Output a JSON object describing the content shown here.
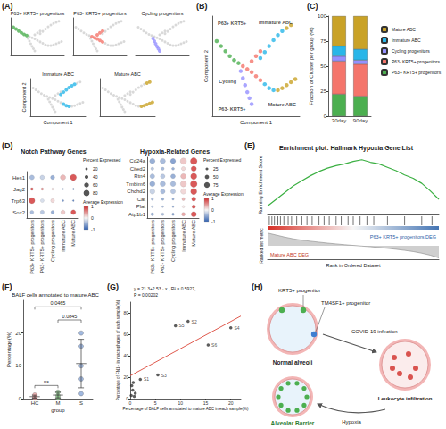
{
  "chart_data": [
    {
      "panel": "(A)",
      "type": "trajectory_panels",
      "xlabel": "Component 1",
      "ylabel": "Component 2",
      "tick_labels": false,
      "xlim": [
        -10,
        10
      ],
      "ylim": [
        -5,
        5
      ],
      "series": [
        {
          "name": "P63+ KRT5+ progenitors",
          "color": "#4caf50",
          "x": [
            -9,
            -8,
            -7,
            -6,
            -5,
            -4
          ],
          "y": [
            2.5,
            2,
            1.5,
            1,
            0.6,
            0.3
          ]
        },
        {
          "name": "P63- KRT5+ progenitors",
          "color": "#f4756b",
          "x": [
            -3,
            -2,
            -1,
            0,
            1,
            -1,
            0,
            1
          ],
          "y": [
            0,
            -0.3,
            -0.6,
            -1,
            -1.4,
            0.5,
            1,
            1.5
          ]
        },
        {
          "name": "Cycling progenitors",
          "color": "#9590ff",
          "x": [
            -3.5,
            -3,
            -2.5,
            -2,
            -1.5,
            -1
          ],
          "y": [
            -0.5,
            -1.2,
            -1.9,
            -2.6,
            -3.2,
            -3.8
          ]
        },
        {
          "name": "Immature ABC",
          "color": "#29b6e8",
          "x": [
            1,
            2,
            3,
            4,
            5,
            6,
            2,
            3,
            4
          ],
          "y": [
            0.8,
            1.4,
            2,
            2.6,
            3.1,
            3.5,
            -1.8,
            -2.2,
            -2.4
          ]
        },
        {
          "name": "Mature ABC",
          "color": "#c9a227",
          "x": [
            5,
            6,
            7,
            8,
            9,
            7,
            8
          ],
          "y": [
            -2.4,
            -2.2,
            -1.9,
            -1.6,
            -1.3,
            3.8,
            4.1
          ]
        }
      ]
    },
    {
      "panel": "(B)",
      "type": "trajectory",
      "xlabel": "Component 1",
      "ylabel": "Component 2",
      "tick_labels": false,
      "xlim": [
        -10,
        10
      ],
      "ylim": [
        -5,
        5
      ],
      "series": [
        {
          "name": "P63+ KRT5+ progenitors",
          "color": "#4caf50",
          "x": [
            -9,
            -8,
            -7,
            -6,
            -5,
            -4
          ],
          "y": [
            2.5,
            2,
            1.5,
            1,
            0.6,
            0.3
          ]
        },
        {
          "name": "P63- KRT5+ progenitors",
          "color": "#f4756b",
          "x": [
            -3,
            -2,
            -1,
            0,
            1,
            -1,
            0,
            1
          ],
          "y": [
            0,
            -0.3,
            -0.6,
            -1,
            -1.4,
            0.5,
            1,
            1.5
          ]
        },
        {
          "name": "Cycling progenitors",
          "color": "#9590ff",
          "x": [
            -3.5,
            -3,
            -2.5,
            -2,
            -1.5,
            -1
          ],
          "y": [
            -0.5,
            -1.2,
            -1.9,
            -2.6,
            -3.2,
            -3.8
          ]
        },
        {
          "name": "Immature ABC",
          "color": "#29b6e8",
          "x": [
            1,
            2,
            3,
            4,
            5,
            6,
            2,
            3,
            4
          ],
          "y": [
            0.8,
            1.4,
            2,
            2.6,
            3.1,
            3.5,
            -1.8,
            -2.2,
            -2.4
          ]
        },
        {
          "name": "Mature ABC",
          "color": "#c9a227",
          "x": [
            5,
            6,
            7,
            8,
            9,
            7,
            8
          ],
          "y": [
            -2.4,
            -2.2,
            -1.9,
            -1.6,
            -1.3,
            3.8,
            4.1
          ]
        }
      ],
      "annotations": [
        {
          "text": "P63+ KRT5+",
          "x": -5.5,
          "y": 4.3
        },
        {
          "text": "Cycling",
          "x": -6.5,
          "y": -1.5
        },
        {
          "text": "P63- KRT5+",
          "x": -5.5,
          "y": -4.3
        },
        {
          "text": "Immature ABC",
          "x": 4.5,
          "y": 4.4
        },
        {
          "text": "Mature ABC",
          "x": 6,
          "y": -3.8
        }
      ]
    },
    {
      "panel": "(C)",
      "type": "bar",
      "stacked": true,
      "legend": "right",
      "ylabel": "Fraction of Cluster per group (%)",
      "categories": [
        "30day",
        "90day"
      ],
      "ylim": [
        0,
        100
      ],
      "yticks": [
        0,
        25,
        50,
        75,
        100
      ],
      "series": [
        {
          "name": "P63+ KRT5+ progenitors",
          "color": "#4caf50",
          "values": [
            22,
            20
          ]
        },
        {
          "name": "P63- KRT5+ progenitors",
          "color": "#f4756b",
          "values": [
            33,
            32
          ]
        },
        {
          "name": "Cycling progenitors",
          "color": "#9590ff",
          "values": [
            5,
            4
          ]
        },
        {
          "name": "Immature ABC",
          "color": "#29b6e8",
          "values": [
            10,
            11
          ]
        },
        {
          "name": "Mature ABC",
          "color": "#c9a227",
          "values": [
            30,
            33
          ]
        }
      ]
    },
    {
      "panel": "(D)",
      "type": "dot",
      "title": "Notch Pathway Genes",
      "x": [
        "P63+ KRT5+ progenitors",
        "P63- KRT5+ progenitors",
        "Cycling progenitors",
        "Immature ABC",
        "Mature ABC"
      ],
      "genes": [
        "Hes1",
        "Jag2",
        "Trp63",
        "Sox2"
      ],
      "pct": [
        [
          60,
          55,
          50,
          70,
          85
        ],
        [
          25,
          20,
          15,
          8,
          5
        ],
        [
          80,
          40,
          45,
          10,
          5
        ],
        [
          40,
          45,
          35,
          50,
          60
        ]
      ],
      "avg": [
        [
          -0.5,
          -0.3,
          -0.6,
          0.4,
          1
        ],
        [
          1,
          0.6,
          0.2,
          -0.6,
          -1
        ],
        [
          1,
          -0.2,
          0.2,
          -0.8,
          -0.9
        ],
        [
          -0.5,
          -0.4,
          -0.6,
          0.3,
          1
        ]
      ],
      "size_label": "Percent Expressed",
      "size_ticks": [
        20,
        40,
        60,
        80
      ],
      "color_label": "Average Expression",
      "color_range": [
        -1,
        1
      ],
      "color_ticks": [
        -1,
        0,
        1
      ],
      "colors": [
        "#3060b0",
        "#f5f5f5",
        "#d03030"
      ]
    },
    {
      "type": "dot",
      "title": "Hypoxia-Related Genes",
      "x": [
        "P63+ KRT5+ progenitors",
        "P63- KRT5+ progenitors",
        "Cycling progenitors",
        "Immature ABC",
        "Mature ABC"
      ],
      "genes": [
        "Cd24a",
        "Cited2",
        "Rtn4",
        "Tmbim6",
        "Chchd2",
        "Cat",
        "Plat",
        "Atp1b1"
      ],
      "pct": [
        [
          70,
          70,
          65,
          85,
          95
        ],
        [
          30,
          30,
          25,
          45,
          70
        ],
        [
          60,
          55,
          55,
          70,
          85
        ],
        [
          70,
          70,
          65,
          80,
          95
        ],
        [
          65,
          60,
          60,
          70,
          85
        ],
        [
          20,
          20,
          15,
          30,
          50
        ],
        [
          15,
          10,
          10,
          20,
          40
        ],
        [
          30,
          25,
          20,
          40,
          70
        ]
      ],
      "avg": [
        [
          -0.6,
          -0.5,
          -0.7,
          0.3,
          1
        ],
        [
          -0.4,
          -0.5,
          -0.6,
          0.2,
          1
        ],
        [
          -0.5,
          -0.4,
          -0.6,
          0.4,
          1
        ],
        [
          -0.6,
          -0.5,
          -0.5,
          0.3,
          1
        ],
        [
          -0.3,
          -0.5,
          -0.4,
          0.2,
          1
        ],
        [
          -0.5,
          -0.6,
          -0.6,
          0.4,
          1
        ],
        [
          -0.4,
          -0.5,
          -0.6,
          0.1,
          1
        ],
        [
          -0.6,
          -0.5,
          -0.7,
          0.5,
          1
        ]
      ],
      "size_label": "Percent Expressed",
      "size_ticks": [
        25,
        50,
        75
      ],
      "color_label": "Average Expression",
      "color_range": [
        -1,
        1
      ],
      "color_ticks": [
        -1,
        0,
        1
      ],
      "colors": [
        "#3060b0",
        "#f5f5f5",
        "#d03030"
      ]
    },
    {
      "panel": "(E)",
      "type": "gsea",
      "title": "Enrichment plot: Hallmark Hypoxia Gene List",
      "xlabel": "Rank in Ordered Dataset",
      "ylabel": "Running Enrichment Score",
      "metric_label": "Ranked list metric",
      "tick_labels": false,
      "color": "#3cb043",
      "xlim": [
        0,
        1000
      ],
      "ylim": [
        -0.1,
        0.6
      ],
      "metric_lim": [
        -1,
        1
      ],
      "x": [
        0,
        50,
        100,
        150,
        200,
        250,
        300,
        350,
        400,
        450,
        500,
        550,
        600,
        650,
        700,
        750,
        800,
        850,
        900,
        950,
        1000
      ],
      "values": [
        0,
        0.08,
        0.16,
        0.24,
        0.3,
        0.36,
        0.41,
        0.45,
        0.48,
        0.5,
        0.53,
        0.55,
        0.52,
        0.5,
        0.46,
        0.42,
        0.37,
        0.33,
        0.27,
        0.18,
        0.08
      ],
      "metric": [
        0.95,
        0.8,
        0.65,
        0.52,
        0.42,
        0.34,
        0.27,
        0.2,
        0.14,
        0.08,
        0.03,
        -0.02,
        -0.07,
        -0.13,
        -0.19,
        -0.26,
        -0.34,
        -0.43,
        -0.55,
        -0.7,
        -0.9
      ],
      "hits": [
        10,
        25,
        40,
        60,
        75,
        95,
        120,
        140,
        170,
        200,
        230,
        260,
        300,
        330,
        360,
        400,
        430,
        470,
        500,
        540,
        580,
        620,
        700,
        800,
        900,
        960
      ],
      "annotations": [
        "Mature ABC DEG",
        "P63+ KRT5+ progenitors DEG"
      ]
    },
    {
      "panel": "(F)",
      "type": "strip",
      "title": "BALF cells annotated to mature ABC",
      "xlabel": "group",
      "ylabel": "Percentage(%)",
      "categories": [
        "HC",
        "M",
        "S"
      ],
      "colors": [
        "#e8a0a0",
        "#88c888",
        "#8aa8d8"
      ],
      "points": [
        [
          0.2,
          0.5,
          1.1
        ],
        [
          0.3,
          0.9,
          2.0
        ],
        [
          1.5,
          6,
          10,
          16,
          20
        ]
      ],
      "mean": [
        0.6,
        1.07,
        10.7
      ],
      "sd": [
        0.46,
        0.87,
        7.4
      ],
      "ylim": [
        0,
        30
      ],
      "yticks": [
        0,
        10,
        20
      ],
      "comparisons": [
        {
          "from": "HC",
          "to": "M",
          "label": "ns",
          "y": 4
        },
        {
          "from": "M",
          "to": "S",
          "label": "0.0845",
          "y": 24
        },
        {
          "from": "HC",
          "to": "S",
          "label": "0.0465",
          "y": 28
        }
      ]
    },
    {
      "panel": "(G)",
      "type": "scatter",
      "color": "#333333",
      "xlabel": "Percentage of BALF cells annotated to mature ABC in each sample(%)",
      "ylabel": "Percentage of FN1+ in macrophages of each sample(%)",
      "annotation": [
        "y = 21.3+2.53 · x , R² = 0.5927,",
        "P = 0.00202"
      ],
      "fit": {
        "intercept": 21.3,
        "slope": 2.53,
        "color": "#e05a4e"
      },
      "x": [
        0.2,
        0.5,
        0.8,
        0.3,
        1.0,
        0.6,
        2,
        11.5,
        5.5,
        20,
        9,
        15.5
      ],
      "y": [
        3,
        8,
        2,
        12,
        5,
        15,
        18,
        72,
        22,
        66,
        68,
        50
      ],
      "labels": [
        null,
        null,
        null,
        null,
        null,
        null,
        "S1",
        "S2",
        "S3",
        "S4",
        "S5",
        "S6"
      ],
      "xlim": [
        0,
        22
      ],
      "xticks": [
        0,
        5,
        10,
        15,
        20
      ],
      "ylim": [
        0,
        90
      ],
      "yticks": [
        0,
        20,
        40,
        60,
        80
      ]
    }
  ],
  "diagram": {
    "panel": "(H)",
    "krt5": "KRT5+ progenitor",
    "tm4sf1": "TM4SF1+ progenitor",
    "infection": "COVID-19 infection",
    "normal": "Normal alveoli",
    "leukocyte": "Leukocyte infiltration",
    "hypoxia": "Hypoxia",
    "barrier": "Alveolar Barrier"
  }
}
